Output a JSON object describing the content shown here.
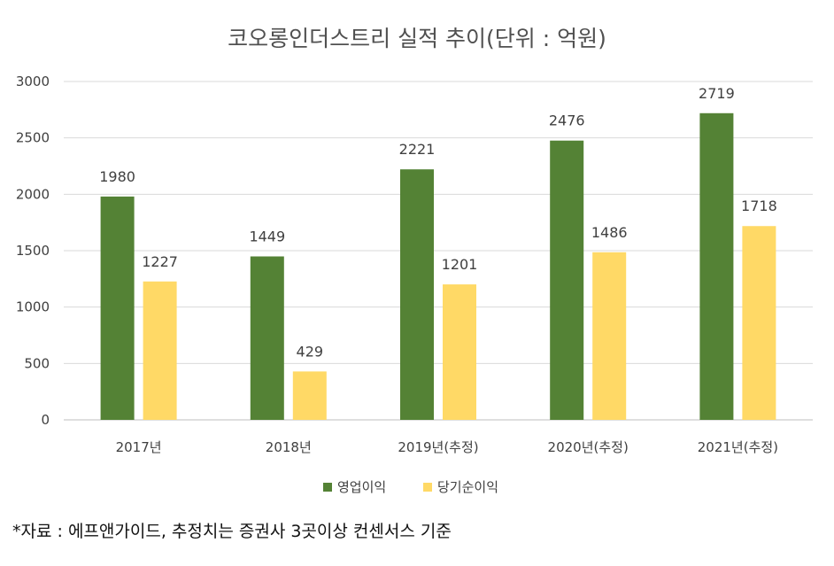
{
  "chart_data": {
    "type": "bar",
    "title": "코오롱인더스트리 실적 추이(단위 : 억원)",
    "categories": [
      "2017년",
      "2018년",
      "2019년(추정)",
      "2020년(추정)",
      "2021년(추정)"
    ],
    "series": [
      {
        "name": "영업이익",
        "values": [
          1980,
          1449,
          2221,
          2476,
          2719
        ],
        "color": "#548235"
      },
      {
        "name": "당기순이익",
        "values": [
          1227,
          429,
          1201,
          1486,
          1718
        ],
        "color": "#FFD966"
      }
    ],
    "ylim": [
      0,
      3000
    ],
    "yticks": [
      0,
      500,
      1000,
      1500,
      2000,
      2500,
      3000
    ],
    "grid": true,
    "legend_position": "bottom",
    "xlabel": "",
    "ylabel": ""
  },
  "footnote": "*자료 : 에프앤가이드, 추정치는 증권사 3곳이상 컨센서스 기준"
}
